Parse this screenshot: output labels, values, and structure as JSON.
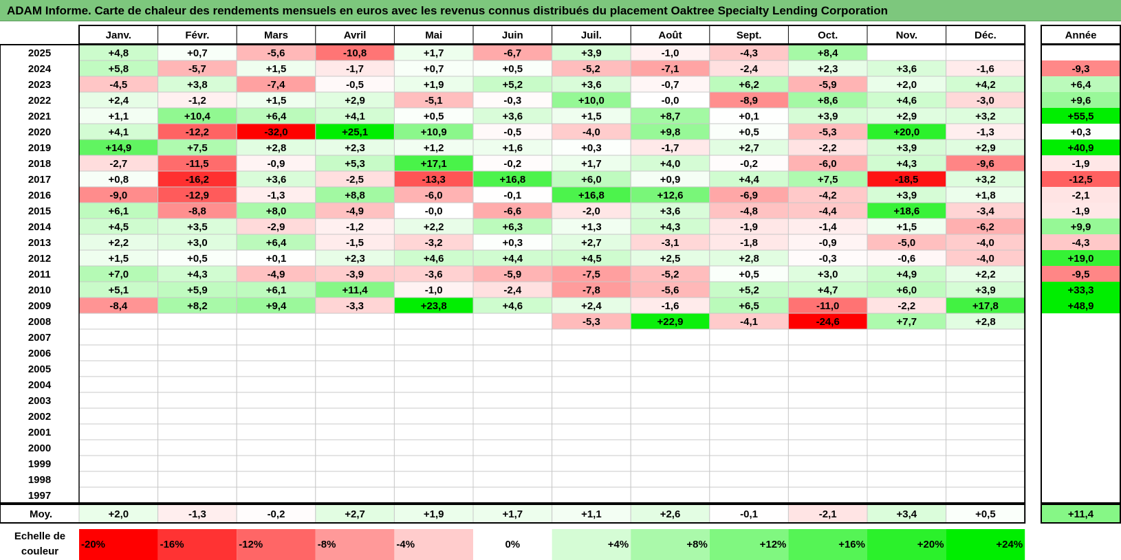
{
  "title": "ADAM Informe. Carte de chaleur des rendements mensuels en euros avec les revenus connus distribués du placement Oaktree Specialty Lending Corporation",
  "chart_data": {
    "type": "heatmap",
    "title": "ADAM Informe. Carte de chaleur des rendements mensuels en euros avec les revenus connus distribués du placement Oaktree Specialty Lending Corporation",
    "months": [
      "Janv.",
      "Févr.",
      "Mars",
      "Avril",
      "Mai",
      "Juin",
      "Juil.",
      "Août",
      "Sept.",
      "Oct.",
      "Nov.",
      "Déc."
    ],
    "year_header": "Année",
    "avg_label": "Moy.",
    "years": [
      "2025",
      "2024",
      "2023",
      "2022",
      "2021",
      "2020",
      "2019",
      "2018",
      "2017",
      "2016",
      "2015",
      "2014",
      "2013",
      "2012",
      "2011",
      "2010",
      "2009",
      "2008",
      "2007",
      "2006",
      "2005",
      "2004",
      "2003",
      "2002",
      "2001",
      "2000",
      "1999",
      "1998",
      "1997"
    ],
    "values": [
      [
        "+4,8",
        "+0,7",
        "-5,6",
        "-10,8",
        "+1,7",
        "-6,7",
        "+3,9",
        "-1,0",
        "-4,3",
        "+8,4",
        "",
        ""
      ],
      [
        "+5,8",
        "-5,7",
        "+1,5",
        "-1,7",
        "+0,7",
        "+0,5",
        "-5,2",
        "-7,1",
        "-2,4",
        "+2,3",
        "+3,6",
        "-1,6"
      ],
      [
        "-4,5",
        "+3,8",
        "-7,4",
        "-0,5",
        "+1,9",
        "+5,2",
        "+3,6",
        "-0,7",
        "+6,2",
        "-5,9",
        "+2,0",
        "+4,2"
      ],
      [
        "+2,4",
        "-1,2",
        "+1,5",
        "+2,9",
        "-5,1",
        "-0,3",
        "+10,0",
        "-0,0",
        "-8,9",
        "+8,6",
        "+4,6",
        "-3,0"
      ],
      [
        "+1,1",
        "+10,4",
        "+6,4",
        "+4,1",
        "+0,5",
        "+3,6",
        "+1,5",
        "+8,7",
        "+0,1",
        "+3,9",
        "+2,9",
        "+3,2"
      ],
      [
        "+4,1",
        "-12,2",
        "-32,0",
        "+25,1",
        "+10,9",
        "-0,5",
        "-4,0",
        "+9,8",
        "+0,5",
        "-5,3",
        "+20,0",
        "-1,3"
      ],
      [
        "+14,9",
        "+7,5",
        "+2,8",
        "+2,3",
        "+1,2",
        "+1,6",
        "+0,3",
        "-1,7",
        "+2,7",
        "-2,2",
        "+3,9",
        "+2,9"
      ],
      [
        "-2,7",
        "-11,5",
        "-0,9",
        "+5,3",
        "+17,1",
        "-0,2",
        "+1,7",
        "+4,0",
        "-0,2",
        "-6,0",
        "+4,3",
        "-9,6"
      ],
      [
        "+0,8",
        "-16,2",
        "+3,6",
        "-2,5",
        "-13,3",
        "+16,8",
        "+6,0",
        "+0,9",
        "+4,4",
        "+7,5",
        "-18,5",
        "+3,2"
      ],
      [
        "-9,0",
        "-12,9",
        "-1,3",
        "+8,8",
        "-6,0",
        "-0,1",
        "+16,8",
        "+12,6",
        "-6,9",
        "-4,2",
        "+3,9",
        "+1,8"
      ],
      [
        "+6,1",
        "-8,8",
        "+8,0",
        "-4,9",
        "-0,0",
        "-6,6",
        "-2,0",
        "+3,6",
        "-4,8",
        "-4,4",
        "+18,6",
        "-3,4"
      ],
      [
        "+4,5",
        "+3,5",
        "-2,9",
        "-1,2",
        "+2,2",
        "+6,3",
        "+1,3",
        "+4,3",
        "-1,9",
        "-1,4",
        "+1,5",
        "-6,2"
      ],
      [
        "+2,2",
        "+3,0",
        "+6,4",
        "-1,5",
        "-3,2",
        "+0,3",
        "+2,7",
        "-3,1",
        "-1,8",
        "-0,9",
        "-5,0",
        "-4,0"
      ],
      [
        "+1,5",
        "+0,5",
        "+0,1",
        "+2,3",
        "+4,6",
        "+4,4",
        "+4,5",
        "+2,5",
        "+2,8",
        "-0,3",
        "-0,6",
        "-4,0"
      ],
      [
        "+7,0",
        "+4,3",
        "-4,9",
        "-3,9",
        "-3,6",
        "-5,9",
        "-7,5",
        "-5,2",
        "+0,5",
        "+3,0",
        "+4,9",
        "+2,2"
      ],
      [
        "+5,1",
        "+5,9",
        "+6,1",
        "+11,4",
        "-1,0",
        "-2,4",
        "-7,8",
        "-5,6",
        "+5,2",
        "+4,7",
        "+6,0",
        "+3,9"
      ],
      [
        "-8,4",
        "+8,2",
        "+9,4",
        "-3,3",
        "+23,8",
        "+4,6",
        "+2,4",
        "-1,6",
        "+6,5",
        "-11,0",
        "-2,2",
        "+17,8"
      ],
      [
        "",
        "",
        "",
        "",
        "",
        "",
        "-5,3",
        "+22,9",
        "-4,1",
        "-24,6",
        "+7,7",
        "+2,8"
      ],
      [
        "",
        "",
        "",
        "",
        "",
        "",
        "",
        "",
        "",
        "",
        "",
        ""
      ],
      [
        "",
        "",
        "",
        "",
        "",
        "",
        "",
        "",
        "",
        "",
        "",
        ""
      ],
      [
        "",
        "",
        "",
        "",
        "",
        "",
        "",
        "",
        "",
        "",
        "",
        ""
      ],
      [
        "",
        "",
        "",
        "",
        "",
        "",
        "",
        "",
        "",
        "",
        "",
        ""
      ],
      [
        "",
        "",
        "",
        "",
        "",
        "",
        "",
        "",
        "",
        "",
        "",
        ""
      ],
      [
        "",
        "",
        "",
        "",
        "",
        "",
        "",
        "",
        "",
        "",
        "",
        ""
      ],
      [
        "",
        "",
        "",
        "",
        "",
        "",
        "",
        "",
        "",
        "",
        "",
        ""
      ],
      [
        "",
        "",
        "",
        "",
        "",
        "",
        "",
        "",
        "",
        "",
        "",
        ""
      ],
      [
        "",
        "",
        "",
        "",
        "",
        "",
        "",
        "",
        "",
        "",
        "",
        ""
      ],
      [
        "",
        "",
        "",
        "",
        "",
        "",
        "",
        "",
        "",
        "",
        "",
        ""
      ],
      [
        "",
        "",
        "",
        "",
        "",
        "",
        "",
        "",
        "",
        "",
        "",
        ""
      ]
    ],
    "annual": [
      "",
      "-9,3",
      "+6,4",
      "+9,6",
      "+55,5",
      "+0,3",
      "+40,9",
      "-1,9",
      "-12,5",
      "-2,1",
      "-1,9",
      "+9,9",
      "-4,3",
      "+19,0",
      "-9,5",
      "+33,3",
      "+48,9",
      "",
      "",
      "",
      "",
      "",
      "",
      "",
      "",
      "",
      "",
      "",
      ""
    ],
    "averages": [
      "+2,0",
      "-1,3",
      "-0,2",
      "+2,7",
      "+1,9",
      "+1,7",
      "+1,1",
      "+2,6",
      "-0,1",
      "-2,1",
      "+3,4",
      "+0,5"
    ],
    "average_annual": "+11,4",
    "scale_title": "Echelle de couleur",
    "scale": [
      "-20%",
      "-16%",
      "-12%",
      "-8%",
      "-4%",
      "0%",
      "+4%",
      "+8%",
      "+12%",
      "+16%",
      "+20%",
      "+24%"
    ],
    "colors": {
      "negative_max": "#ff0000",
      "neutral": "#ffffff",
      "positive_max": "#00ee00",
      "title_background": "#7dc77d"
    }
  }
}
